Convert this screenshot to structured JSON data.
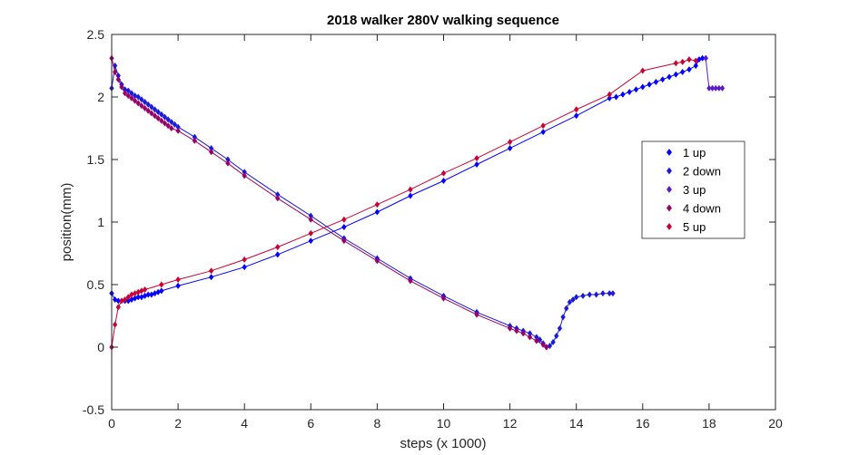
{
  "chart_data": {
    "type": "line",
    "title": "2018 walker 280V walking sequence",
    "xlabel": "steps (x 1000)",
    "ylabel": "position(mm)",
    "xlim": [
      0,
      20
    ],
    "ylim": [
      -0.5,
      2.5
    ],
    "xticks": [
      0,
      2,
      4,
      6,
      8,
      10,
      12,
      14,
      16,
      18,
      20
    ],
    "yticks": [
      -0.5,
      0,
      0.5,
      1,
      1.5,
      2,
      2.5
    ],
    "xtick_labels": [
      "0",
      "2",
      "4",
      "6",
      "8",
      "10",
      "12",
      "14",
      "16",
      "18",
      "20"
    ],
    "ytick_labels": [
      "-0.5",
      "0",
      "0.5",
      "1",
      "1.5",
      "2",
      "2.5"
    ],
    "grid": false,
    "legend_position": "right",
    "marker": "diamond",
    "series": [
      {
        "name": "1 up",
        "color": "#0000ff",
        "points": [
          [
            0,
            0.43
          ],
          [
            0.1,
            0.38
          ],
          [
            0.2,
            0.37
          ],
          [
            0.3,
            0.37
          ],
          [
            0.4,
            0.37
          ],
          [
            0.5,
            0.37
          ],
          [
            0.6,
            0.38
          ],
          [
            0.7,
            0.39
          ],
          [
            0.8,
            0.4
          ],
          [
            0.9,
            0.4
          ],
          [
            1.0,
            0.41
          ],
          [
            1.1,
            0.42
          ],
          [
            1.2,
            0.42
          ],
          [
            1.3,
            0.43
          ],
          [
            1.4,
            0.44
          ],
          [
            1.5,
            0.45
          ],
          [
            2,
            0.49
          ],
          [
            3,
            0.56
          ],
          [
            4,
            0.64
          ],
          [
            5,
            0.74
          ],
          [
            6,
            0.85
          ],
          [
            7,
            0.96
          ],
          [
            8,
            1.08
          ],
          [
            9,
            1.21
          ],
          [
            10,
            1.33
          ],
          [
            11,
            1.46
          ],
          [
            12,
            1.59
          ],
          [
            13,
            1.72
          ],
          [
            14,
            1.85
          ],
          [
            15,
            1.99
          ],
          [
            15.2,
            2.0
          ],
          [
            15.4,
            2.02
          ],
          [
            15.6,
            2.04
          ],
          [
            15.8,
            2.06
          ],
          [
            16,
            2.08
          ],
          [
            16.2,
            2.1
          ],
          [
            16.4,
            2.12
          ],
          [
            16.6,
            2.14
          ],
          [
            16.8,
            2.16
          ],
          [
            17,
            2.18
          ],
          [
            17.2,
            2.2
          ],
          [
            17.4,
            2.22
          ],
          [
            17.6,
            2.25
          ],
          [
            17.7,
            2.3
          ],
          [
            17.8,
            2.31
          ],
          [
            17.9,
            2.31
          ]
        ]
      },
      {
        "name": "2 down",
        "color": "#1a1ad9",
        "points": [
          [
            0,
            2.07
          ],
          [
            0.1,
            2.25
          ],
          [
            0.2,
            2.17
          ],
          [
            0.3,
            2.1
          ],
          [
            0.4,
            2.06
          ],
          [
            0.5,
            2.05
          ],
          [
            0.6,
            2.03
          ],
          [
            0.7,
            2.01
          ],
          [
            0.8,
            2.0
          ],
          [
            0.9,
            1.98
          ],
          [
            1.0,
            1.96
          ],
          [
            1.1,
            1.94
          ],
          [
            1.2,
            1.92
          ],
          [
            1.3,
            1.9
          ],
          [
            1.4,
            1.88
          ],
          [
            1.5,
            1.86
          ],
          [
            1.6,
            1.84
          ],
          [
            1.7,
            1.82
          ],
          [
            1.8,
            1.8
          ],
          [
            1.9,
            1.78
          ],
          [
            2.0,
            1.76
          ],
          [
            2.5,
            1.68
          ],
          [
            3,
            1.59
          ],
          [
            3.5,
            1.5
          ],
          [
            4,
            1.4
          ],
          [
            5,
            1.22
          ],
          [
            6,
            1.05
          ],
          [
            7,
            0.87
          ],
          [
            8,
            0.71
          ],
          [
            9,
            0.55
          ],
          [
            10,
            0.41
          ],
          [
            11,
            0.28
          ],
          [
            12,
            0.17
          ],
          [
            12.2,
            0.15
          ],
          [
            12.4,
            0.13
          ],
          [
            12.6,
            0.11
          ],
          [
            12.8,
            0.08
          ],
          [
            12.9,
            0.06
          ],
          [
            13.0,
            0.03
          ],
          [
            13.1,
            0.0
          ],
          [
            13.2,
            0.01
          ],
          [
            13.3,
            0.04
          ],
          [
            13.4,
            0.09
          ],
          [
            13.5,
            0.15
          ],
          [
            13.6,
            0.24
          ],
          [
            13.7,
            0.31
          ],
          [
            13.8,
            0.36
          ],
          [
            13.9,
            0.38
          ],
          [
            14.0,
            0.4
          ],
          [
            14.2,
            0.41
          ],
          [
            14.4,
            0.42
          ],
          [
            14.6,
            0.42
          ],
          [
            14.8,
            0.43
          ],
          [
            15.0,
            0.43
          ],
          [
            15.1,
            0.43
          ]
        ]
      },
      {
        "name": "3 up",
        "color": "#5a1acc",
        "points": [
          [
            17.9,
            2.31
          ],
          [
            18.0,
            2.07
          ],
          [
            18.1,
            2.07
          ],
          [
            18.2,
            2.07
          ],
          [
            18.3,
            2.07
          ],
          [
            18.4,
            2.07
          ]
        ]
      },
      {
        "name": "4 down",
        "color": "#990066",
        "points": [
          [
            0,
            2.31
          ],
          [
            0.1,
            2.2
          ],
          [
            0.2,
            2.14
          ],
          [
            0.3,
            2.08
          ],
          [
            0.4,
            2.03
          ],
          [
            0.5,
            2.01
          ],
          [
            0.6,
            1.99
          ],
          [
            0.7,
            1.97
          ],
          [
            0.8,
            1.95
          ],
          [
            0.9,
            1.93
          ],
          [
            1.0,
            1.91
          ],
          [
            1.1,
            1.89
          ],
          [
            1.2,
            1.87
          ],
          [
            1.3,
            1.85
          ],
          [
            1.4,
            1.83
          ],
          [
            1.5,
            1.81
          ],
          [
            1.6,
            1.79
          ],
          [
            1.7,
            1.77
          ],
          [
            1.8,
            1.75
          ],
          [
            2,
            1.73
          ],
          [
            2.5,
            1.65
          ],
          [
            3,
            1.56
          ],
          [
            3.5,
            1.47
          ],
          [
            4,
            1.37
          ],
          [
            5,
            1.19
          ],
          [
            6,
            1.02
          ],
          [
            7,
            0.85
          ],
          [
            8,
            0.69
          ],
          [
            9,
            0.53
          ],
          [
            10,
            0.39
          ],
          [
            11,
            0.26
          ],
          [
            12,
            0.15
          ],
          [
            12.2,
            0.13
          ],
          [
            12.4,
            0.11
          ],
          [
            12.6,
            0.08
          ],
          [
            12.8,
            0.05
          ],
          [
            13.0,
            0.02
          ],
          [
            13.1,
            0.0
          ]
        ]
      },
      {
        "name": "5 up",
        "color": "#cc0033",
        "points": [
          [
            0,
            0.0
          ],
          [
            0.1,
            0.18
          ],
          [
            0.2,
            0.32
          ],
          [
            0.3,
            0.37
          ],
          [
            0.4,
            0.38
          ],
          [
            0.5,
            0.4
          ],
          [
            0.6,
            0.42
          ],
          [
            0.7,
            0.43
          ],
          [
            0.8,
            0.44
          ],
          [
            0.9,
            0.45
          ],
          [
            1.0,
            0.46
          ],
          [
            1.5,
            0.5
          ],
          [
            2,
            0.54
          ],
          [
            3,
            0.61
          ],
          [
            4,
            0.7
          ],
          [
            5,
            0.8
          ],
          [
            6,
            0.91
          ],
          [
            7,
            1.02
          ],
          [
            8,
            1.14
          ],
          [
            9,
            1.26
          ],
          [
            10,
            1.39
          ],
          [
            11,
            1.51
          ],
          [
            12,
            1.64
          ],
          [
            13,
            1.77
          ],
          [
            14,
            1.9
          ],
          [
            15,
            2.02
          ],
          [
            16,
            2.21
          ],
          [
            17,
            2.27
          ],
          [
            17.2,
            2.28
          ],
          [
            17.4,
            2.3
          ],
          [
            17.6,
            2.29
          ]
        ]
      }
    ]
  }
}
